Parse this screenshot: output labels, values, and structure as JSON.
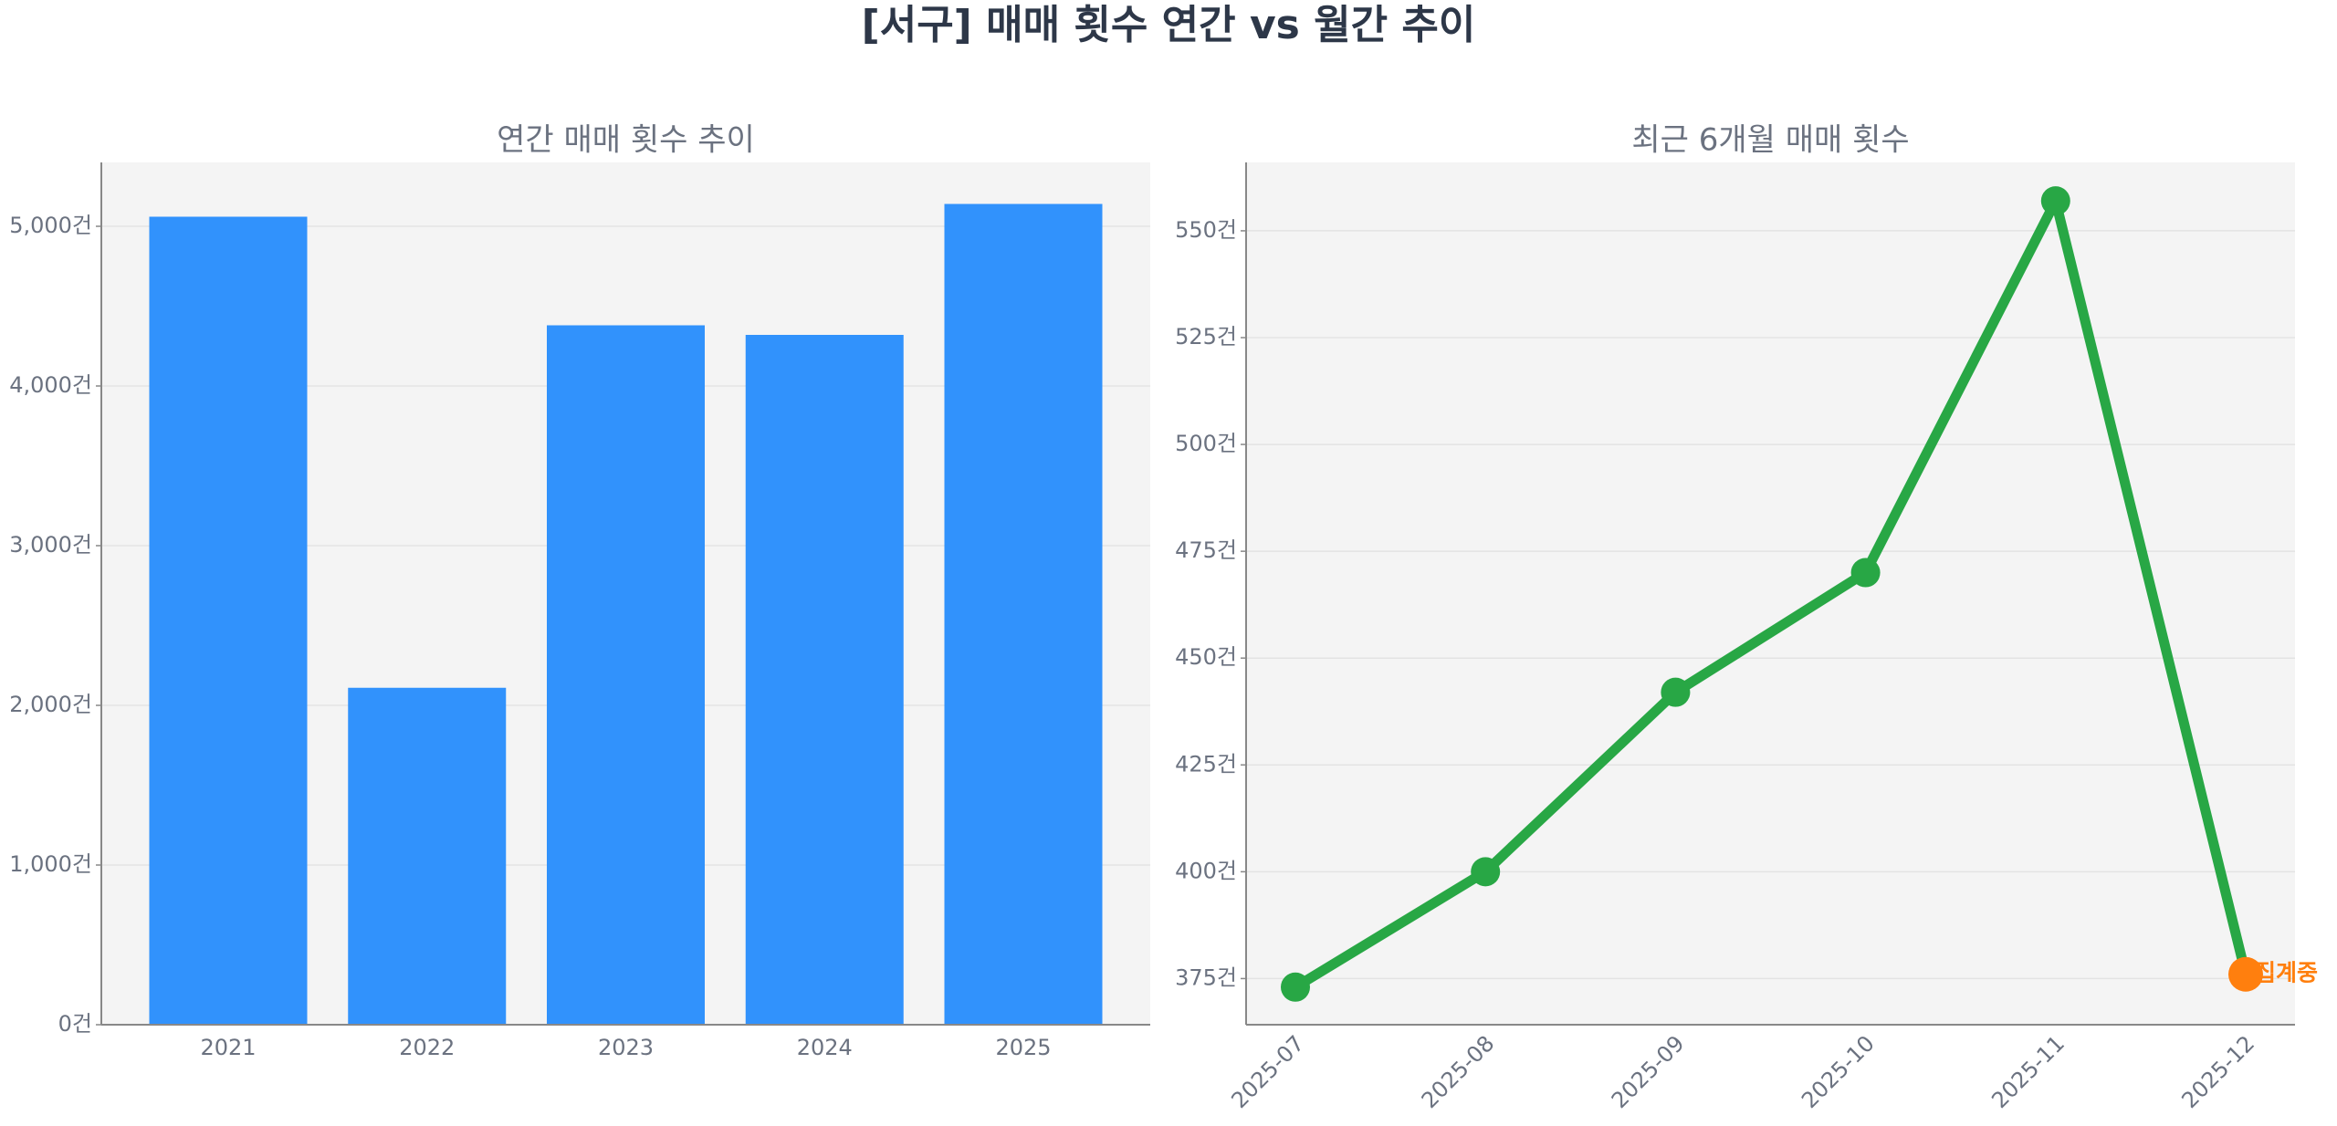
{
  "title": "[서구] 매매 횟수 연간 vs 월간 추이",
  "chart_data": [
    {
      "type": "bar",
      "title": "연간 매매 횟수 추이",
      "categories": [
        "2021",
        "2022",
        "2023",
        "2024",
        "2025"
      ],
      "values": [
        5060,
        2110,
        4380,
        4320,
        5140
      ],
      "color": "#3192fc",
      "ylim": [
        0,
        5400
      ],
      "yticks": [
        {
          "value": 0,
          "label": "0건"
        },
        {
          "value": 1000,
          "label": "1,000건"
        },
        {
          "value": 2000,
          "label": "2,000건"
        },
        {
          "value": 3000,
          "label": "3,000건"
        },
        {
          "value": 4000,
          "label": "4,000건"
        },
        {
          "value": 5000,
          "label": "5,000건"
        }
      ],
      "grid": true
    },
    {
      "type": "line",
      "title": "최근 6개월 매매 횟수",
      "categories": [
        "2025-07",
        "2025-08",
        "2025-09",
        "2025-10",
        "2025-11",
        "2025-12"
      ],
      "values": [
        373,
        400,
        442,
        470,
        557,
        376
      ],
      "color": "#28a745",
      "ylim": [
        364.2,
        566
      ],
      "yticks": [
        {
          "value": 375,
          "label": "375건"
        },
        {
          "value": 400,
          "label": "400건"
        },
        {
          "value": 425,
          "label": "425건"
        },
        {
          "value": 450,
          "label": "450건"
        },
        {
          "value": 475,
          "label": "475건"
        },
        {
          "value": 500,
          "label": "500건"
        },
        {
          "value": 525,
          "label": "525건"
        },
        {
          "value": 550,
          "label": "550건"
        }
      ],
      "grid": true,
      "annotations": [
        {
          "x": "2025-12",
          "text": "집계중",
          "color": "#ff7f0e"
        }
      ]
    }
  ]
}
